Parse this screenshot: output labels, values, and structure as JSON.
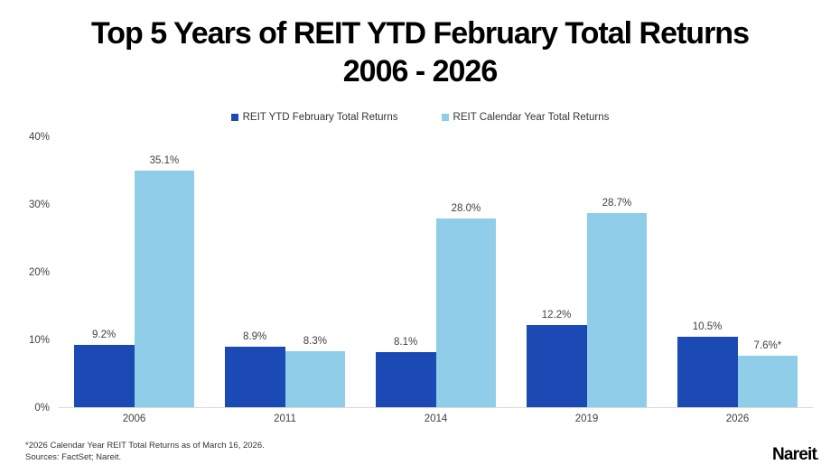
{
  "title": {
    "line1": "Top 5 Years of REIT YTD February Total Returns",
    "line2": "2006 - 2026"
  },
  "chart_data": {
    "type": "bar",
    "title": "Top 5 Years of REIT YTD February Total Returns 2006 - 2026",
    "categories": [
      "2006",
      "2011",
      "2014",
      "2019",
      "2026"
    ],
    "series": [
      {
        "name": "REIT YTD February Total Returns",
        "color": "#1c4ab5",
        "values": [
          9.2,
          8.9,
          8.1,
          12.2,
          10.5
        ],
        "labels": [
          "9.2%",
          "8.9%",
          "8.1%",
          "12.2%",
          "10.5%"
        ]
      },
      {
        "name": "REIT Calendar Year Total Returns",
        "color": "#8fcde8",
        "values": [
          35.1,
          8.3,
          28.0,
          28.7,
          7.6
        ],
        "labels": [
          "35.1%",
          "8.3%",
          "28.0%",
          "28.7%",
          "7.6%*"
        ]
      }
    ],
    "xlabel": "",
    "ylabel": "",
    "ylim": [
      0,
      40
    ],
    "yticks": [
      {
        "value": 0,
        "label": "0%"
      },
      {
        "value": 10,
        "label": "10%"
      },
      {
        "value": 20,
        "label": "20%"
      },
      {
        "value": 30,
        "label": "30%"
      },
      {
        "value": 40,
        "label": "40%"
      }
    ],
    "grid": false,
    "legend_position": "top",
    "axis_line_color": "#d9d9d9",
    "label_color": "#404040"
  },
  "footnotes": [
    "*2026 Calendar Year REIT Total Returns as of March 16, 2026.",
    "Sources: FactSet; Nareit."
  ],
  "logo": {
    "text": "Nareit",
    "dot": "."
  }
}
